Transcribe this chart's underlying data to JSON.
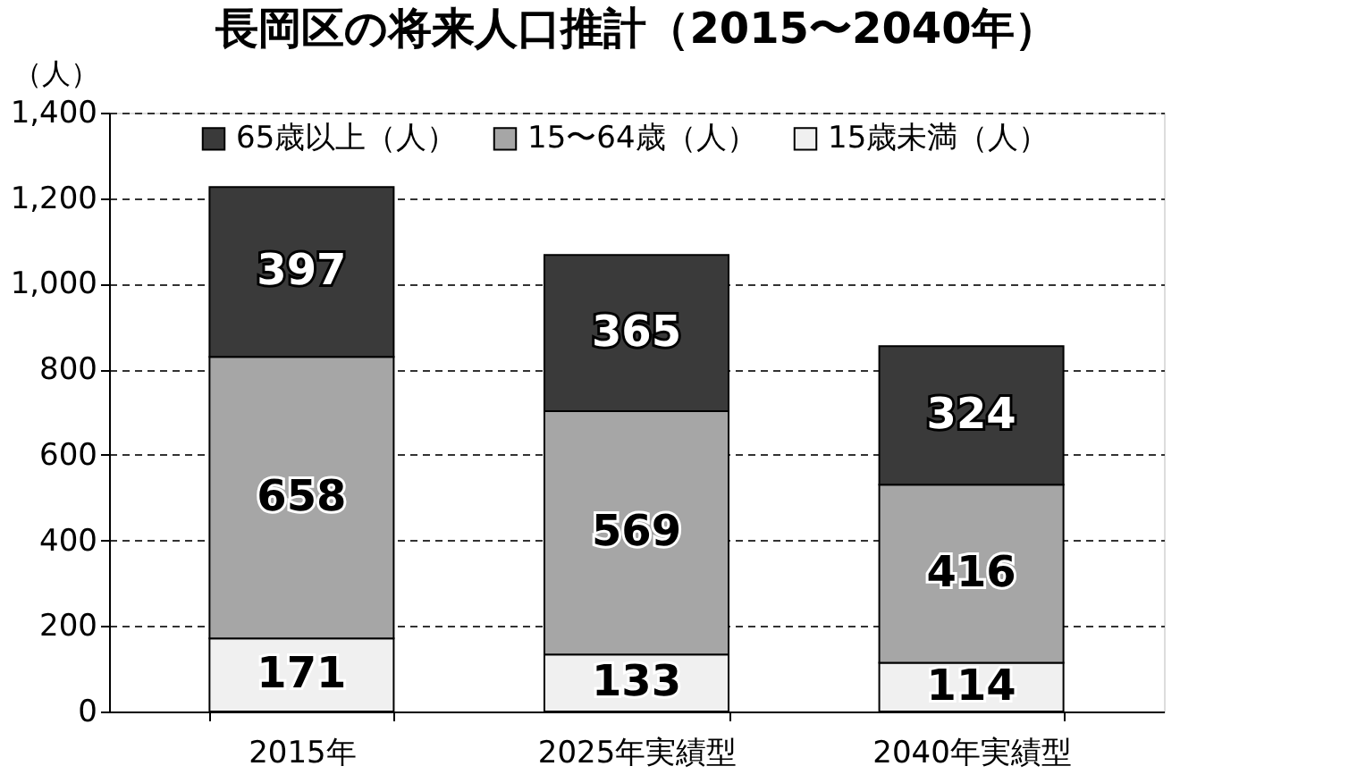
{
  "chart_data": {
    "type": "bar",
    "title": "長岡区の将来人口推計（2015〜2040年）",
    "ylabel": "（人）",
    "categories": [
      "2015年",
      "2025年実績型",
      "2040年実績型"
    ],
    "stacked": true,
    "data_labels": true,
    "legend": "top",
    "grid": "y",
    "ylim": [
      0,
      1400
    ],
    "yticks": [
      {
        "value": 0,
        "label": "0"
      },
      {
        "value": 200,
        "label": "200"
      },
      {
        "value": 400,
        "label": "400"
      },
      {
        "value": 600,
        "label": "600"
      },
      {
        "value": 800,
        "label": "800"
      },
      {
        "value": 1000,
        "label": "1,000"
      },
      {
        "value": 1200,
        "label": "1,200"
      },
      {
        "value": 1400,
        "label": "1,400"
      }
    ],
    "series": [
      {
        "name": "15歳未満（人）",
        "color": "#f0f0f0",
        "values": [
          171,
          133,
          114
        ]
      },
      {
        "name": "15〜64歳（人）",
        "color": "#a6a6a6",
        "values": [
          658,
          569,
          416
        ]
      },
      {
        "name": "65歳以上（人）",
        "color": "#3a3a3a",
        "values": [
          397,
          365,
          324
        ]
      }
    ]
  }
}
